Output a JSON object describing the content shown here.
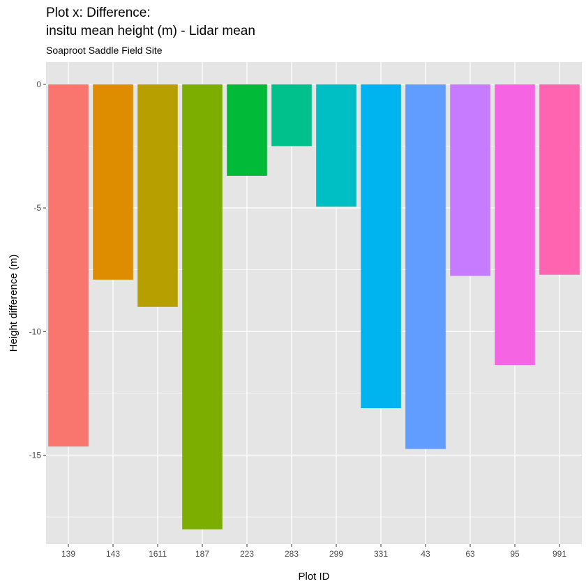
{
  "chart_data": {
    "type": "bar",
    "title_lines": [
      "Plot x: Difference:",
      "insitu mean height (m) - Lidar mean"
    ],
    "subtitle": "Soaproot Saddle Field Site",
    "xlabel": "Plot ID",
    "ylabel": "Height difference (m)",
    "ylim": [
      -18.6,
      0.9
    ],
    "yticks": [
      0,
      -5,
      -10,
      -15
    ],
    "ytick_labels": [
      "0",
      "-5",
      "-10",
      "-15"
    ],
    "y_minor_gridlines": [
      -2.5,
      -7.5,
      -12.5,
      -17.5
    ],
    "grid": true,
    "legend": "none",
    "panel_background": "#e5e5e5",
    "grid_color": "#ffffff",
    "categories": [
      "139",
      "143",
      "1611",
      "187",
      "223",
      "283",
      "299",
      "331",
      "43",
      "63",
      "95",
      "991"
    ],
    "values": [
      -14.65,
      -7.9,
      -9.0,
      -18.0,
      -3.7,
      -2.5,
      -4.95,
      -13.1,
      -14.75,
      -7.75,
      -11.35,
      -7.7
    ],
    "colors": [
      "#F8766D",
      "#DE8C00",
      "#B79F00",
      "#7CAE00",
      "#00BA38",
      "#00C08B",
      "#00BFC4",
      "#00B4F0",
      "#619CFF",
      "#C77CFF",
      "#F564E3",
      "#FF64B0"
    ]
  }
}
